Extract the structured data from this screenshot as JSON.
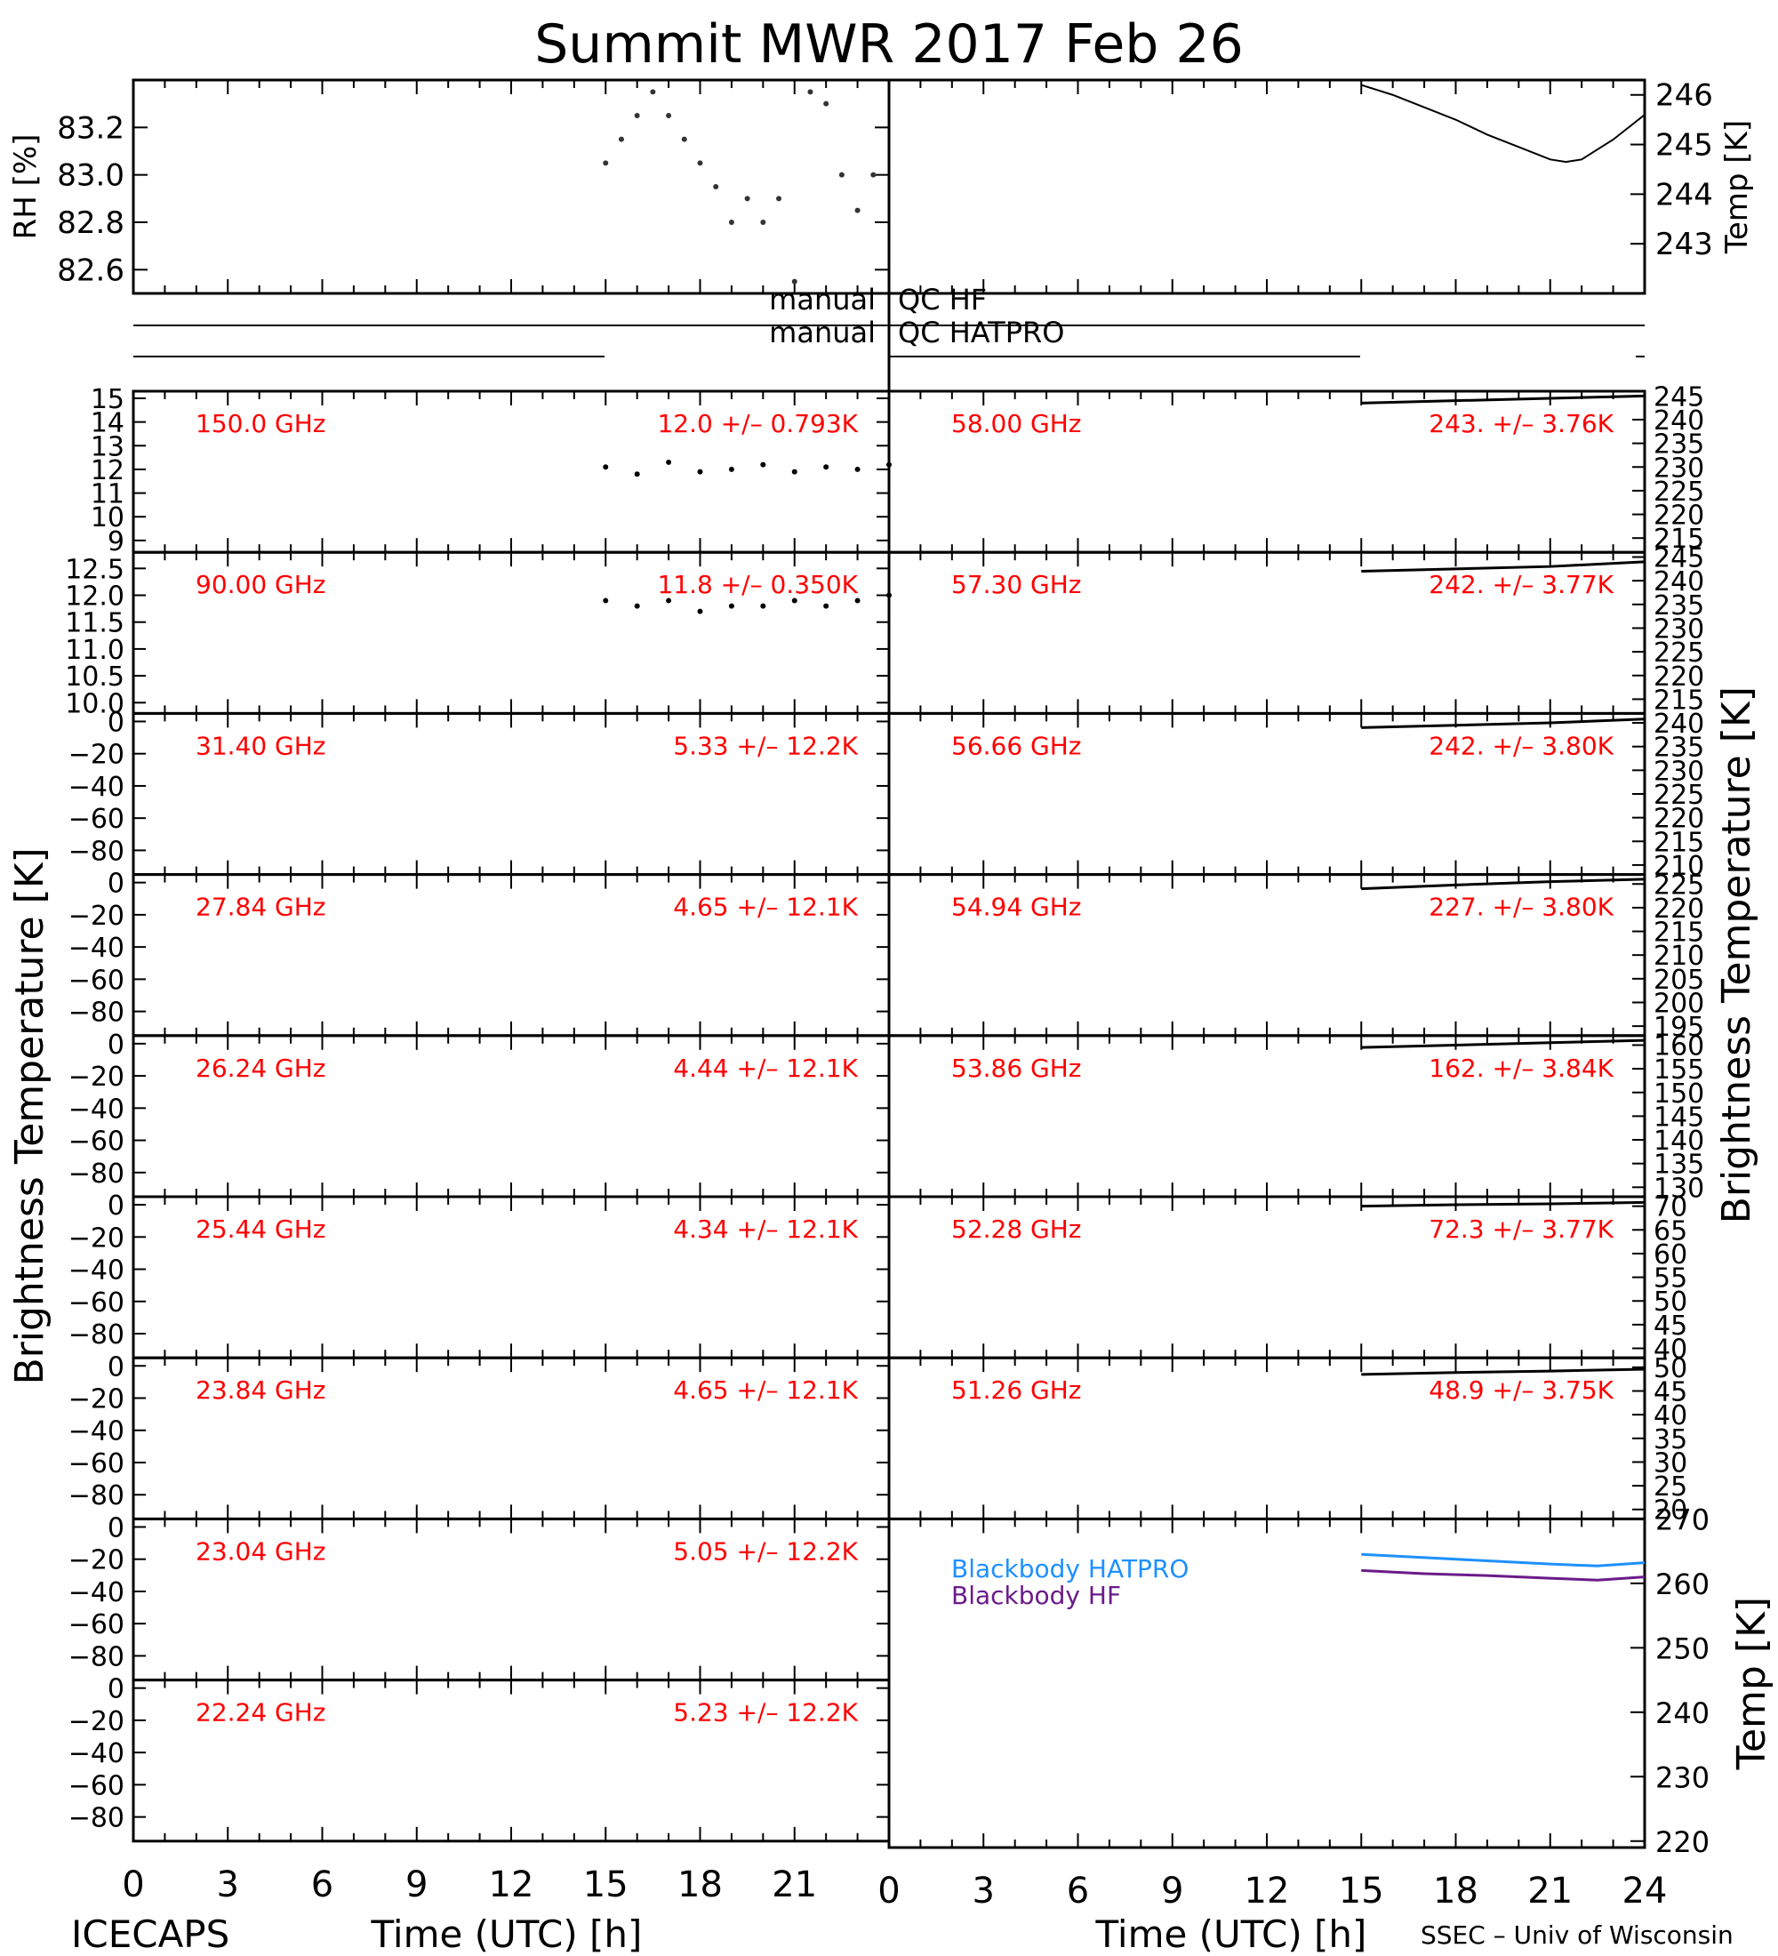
{
  "title": "Summit MWR 2017 Feb 26",
  "footer": {
    "left": "ICECAPS",
    "right": "SSEC – Univ of Wisconsin"
  },
  "colors": {
    "frame": "#000000",
    "label_red": "#ff0000",
    "bb_hatpro": "#1e90ff",
    "bb_hf": "#6a1b8a"
  },
  "chart_data": [
    {
      "id": "rh",
      "type": "scatter",
      "panel": "top-left",
      "ylabel": "RH [%]",
      "yticks": [
        "82.6",
        "82.8",
        "83.0",
        "83.2"
      ],
      "ylim": [
        82.5,
        83.4
      ],
      "x": [
        15.0,
        15.5,
        16.0,
        16.5,
        17.0,
        17.5,
        18.0,
        18.5,
        19.0,
        19.5,
        20.0,
        20.5,
        21.0,
        21.5,
        22.0,
        22.5,
        23.0,
        23.5
      ],
      "y": [
        83.05,
        83.15,
        83.25,
        83.35,
        83.25,
        83.15,
        83.05,
        82.95,
        82.8,
        82.9,
        82.8,
        82.9,
        82.55,
        83.35,
        83.3,
        83.0,
        82.85,
        83.0
      ]
    },
    {
      "id": "temp",
      "type": "line",
      "panel": "top-right",
      "ylabel": "Temp [K]",
      "yticks": [
        "243",
        "244",
        "245",
        "246"
      ],
      "ylim": [
        242.0,
        246.3
      ],
      "x": [
        15.0,
        16.0,
        17.0,
        18.0,
        19.0,
        20.0,
        21.0,
        21.5,
        22.0,
        23.0,
        24.0
      ],
      "y": [
        246.2,
        246.0,
        245.75,
        245.5,
        245.2,
        244.95,
        244.7,
        244.65,
        244.7,
        245.1,
        245.6
      ]
    },
    {
      "id": "qc",
      "type": "table",
      "panel": "qc-strip",
      "rows": [
        "manual",
        "manual"
      ],
      "right_labels": [
        "QC HF",
        "QC HATPRO"
      ]
    },
    {
      "id": "left_channels",
      "type": "scatter",
      "panel": "left-column",
      "ylabel": "Brightness Temperature [K]",
      "xlabel": "Time (UTC) [h]",
      "xlim": [
        0,
        24
      ],
      "xticks": [
        "0",
        "3",
        "6",
        "9",
        "12",
        "15",
        "18",
        "21"
      ],
      "series": [
        {
          "name": "150.0 GHz",
          "stat": "12.0 +/– 0.793K",
          "yticks": [
            "9",
            "10",
            "11",
            "12",
            "13",
            "14",
            "15"
          ],
          "ylim": [
            8.5,
            15.3
          ],
          "x": [
            15,
            16,
            17,
            18,
            19,
            20,
            21,
            22,
            23,
            24
          ],
          "y": [
            12.1,
            11.8,
            12.3,
            11.9,
            12.0,
            12.2,
            11.9,
            12.1,
            12.0,
            12.2
          ]
        },
        {
          "name": "90.00 GHz",
          "stat": "11.8 +/– 0.350K",
          "yticks": [
            "10.0",
            "10.5",
            "11.0",
            "11.5",
            "12.0",
            "12.5"
          ],
          "ylim": [
            9.8,
            12.8
          ],
          "x": [
            15,
            16,
            17,
            18,
            19,
            20,
            21,
            22,
            23,
            24
          ],
          "y": [
            11.9,
            11.8,
            11.9,
            11.7,
            11.8,
            11.8,
            11.9,
            11.8,
            11.9,
            12.0
          ]
        },
        {
          "name": "31.40 GHz",
          "stat": "5.33 +/– 12.2K",
          "yticks": [
            "0",
            "−20",
            "−40",
            "−60",
            "−80"
          ],
          "ylim": [
            -95,
            5
          ]
        },
        {
          "name": "27.84 GHz",
          "stat": "4.65 +/– 12.1K",
          "yticks": [
            "0",
            "−20",
            "−40",
            "−60",
            "−80"
          ],
          "ylim": [
            -95,
            5
          ]
        },
        {
          "name": "26.24 GHz",
          "stat": "4.44 +/– 12.1K",
          "yticks": [
            "0",
            "−20",
            "−40",
            "−60",
            "−80"
          ],
          "ylim": [
            -95,
            5
          ]
        },
        {
          "name": "25.44 GHz",
          "stat": "4.34 +/– 12.1K",
          "yticks": [
            "0",
            "−20",
            "−40",
            "−60",
            "−80"
          ],
          "ylim": [
            -95,
            5
          ]
        },
        {
          "name": "23.84 GHz",
          "stat": "4.65 +/– 12.1K",
          "yticks": [
            "0",
            "−20",
            "−40",
            "−60",
            "−80"
          ],
          "ylim": [
            -95,
            5
          ]
        },
        {
          "name": "23.04 GHz",
          "stat": "5.05 +/– 12.2K",
          "yticks": [
            "0",
            "−20",
            "−40",
            "−60",
            "−80"
          ],
          "ylim": [
            -95,
            5
          ]
        },
        {
          "name": "22.24 GHz",
          "stat": "5.23 +/– 12.2K",
          "yticks": [
            "0",
            "−20",
            "−40",
            "−60",
            "−80"
          ],
          "ylim": [
            -95,
            5
          ]
        }
      ]
    },
    {
      "id": "right_channels",
      "type": "line",
      "panel": "right-column",
      "ylabel": "Brightness Temperature [K]",
      "xlim": [
        0,
        24
      ],
      "series": [
        {
          "name": "58.00 GHz",
          "stat": "243. +/– 3.76K",
          "yticks": [
            "215",
            "220",
            "225",
            "230",
            "235",
            "240",
            "245"
          ],
          "ylim": [
            212,
            246
          ],
          "x": [
            15,
            18,
            21,
            24
          ],
          "y": [
            243.5,
            244.0,
            244.5,
            245.0
          ]
        },
        {
          "name": "57.30 GHz",
          "stat": "242. +/– 3.77K",
          "yticks": [
            "215",
            "220",
            "225",
            "230",
            "235",
            "240",
            "245"
          ],
          "ylim": [
            212,
            246
          ],
          "x": [
            15,
            18,
            21,
            24
          ],
          "y": [
            242.0,
            242.5,
            243.0,
            244.0
          ]
        },
        {
          "name": "56.66 GHz",
          "stat": "242. +/– 3.80K",
          "yticks": [
            "210",
            "215",
            "220",
            "225",
            "230",
            "235",
            "240"
          ],
          "ylim": [
            208,
            242
          ],
          "x": [
            15,
            18,
            21,
            24
          ],
          "y": [
            239.0,
            239.5,
            240.0,
            240.8
          ]
        },
        {
          "name": "54.94 GHz",
          "stat": "227. +/– 3.80K",
          "yticks": [
            "195",
            "200",
            "205",
            "210",
            "215",
            "220",
            "225"
          ],
          "ylim": [
            193,
            227
          ],
          "x": [
            15,
            18,
            21,
            24
          ],
          "y": [
            224.0,
            224.8,
            225.5,
            226.0
          ]
        },
        {
          "name": "53.86 GHz",
          "stat": "162. +/– 3.84K",
          "yticks": [
            "130",
            "135",
            "140",
            "145",
            "150",
            "155",
            "160"
          ],
          "ylim": [
            128,
            162
          ],
          "x": [
            15,
            18,
            21,
            24
          ],
          "y": [
            159.5,
            160.0,
            160.5,
            161.0
          ]
        },
        {
          "name": "52.28 GHz",
          "stat": "72.3 +/– 3.77K",
          "yticks": [
            "40",
            "45",
            "50",
            "55",
            "60",
            "65",
            "70"
          ],
          "ylim": [
            38,
            72
          ],
          "x": [
            15,
            18,
            21,
            24
          ],
          "y": [
            70.0,
            70.3,
            70.5,
            70.8
          ]
        },
        {
          "name": "51.26 GHz",
          "stat": "48.9 +/– 3.75K",
          "yticks": [
            "20",
            "25",
            "30",
            "35",
            "40",
            "45",
            "50"
          ],
          "ylim": [
            18,
            52
          ],
          "x": [
            15,
            18,
            21,
            24
          ],
          "y": [
            48.5,
            48.9,
            49.2,
            49.6
          ]
        }
      ]
    },
    {
      "id": "blackbody",
      "type": "line",
      "panel": "bottom-right",
      "ylabel": "Temp [K]",
      "xlabel": "Time (UTC) [h]",
      "xlim": [
        0,
        24
      ],
      "xticks": [
        "0",
        "3",
        "6",
        "9",
        "12",
        "15",
        "18",
        "21",
        "24"
      ],
      "yticks": [
        "220",
        "230",
        "240",
        "250",
        "260",
        "270"
      ],
      "ylim": [
        219,
        270
      ],
      "series": [
        {
          "name": "Blackbody HATPRO",
          "x": [
            15,
            17,
            19,
            21,
            22.5,
            24
          ],
          "y": [
            264.5,
            264.0,
            263.5,
            263.0,
            262.7,
            263.2
          ]
        },
        {
          "name": "Blackbody HF",
          "x": [
            15,
            17,
            19,
            21,
            22.5,
            24
          ],
          "y": [
            262.0,
            261.5,
            261.2,
            260.8,
            260.5,
            261.0
          ]
        }
      ]
    }
  ]
}
